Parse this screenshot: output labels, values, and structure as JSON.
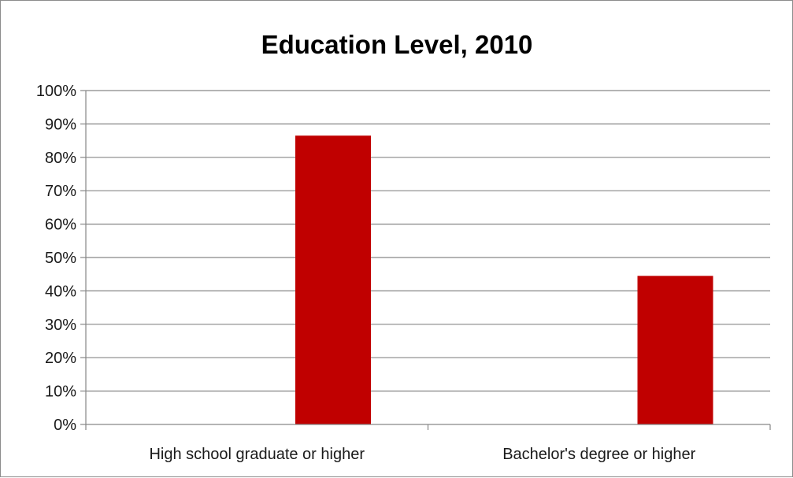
{
  "chart_data": {
    "type": "bar",
    "title": "Education Level, 2010",
    "categories": [
      "High school graduate or higher",
      "Bachelor's degree or higher"
    ],
    "series": [
      {
        "values": [
          0.865,
          0.445
        ]
      }
    ],
    "yticks": [
      0,
      0.1,
      0.2,
      0.3,
      0.4,
      0.5,
      0.6,
      0.7,
      0.8,
      0.9,
      1.0
    ],
    "ytick_labels": [
      "0%",
      "10%",
      "20%",
      "30%",
      "40%",
      "50%",
      "60%",
      "70%",
      "80%",
      "90%",
      "100%"
    ],
    "ylim": [
      0,
      1
    ],
    "grid": true,
    "legend": "none",
    "colors": {
      "bar": "#c00000",
      "grid": "#868686",
      "axis": "#868686"
    }
  }
}
